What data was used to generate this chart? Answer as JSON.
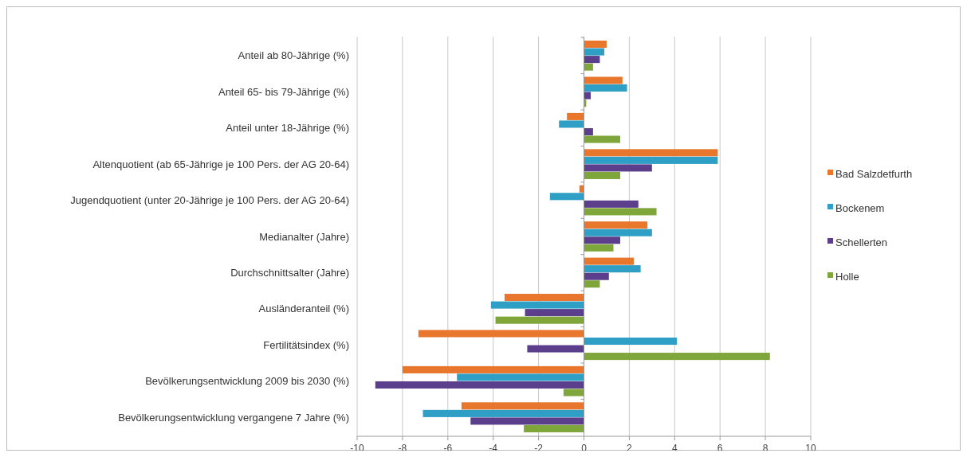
{
  "chart_data": {
    "type": "bar",
    "orientation": "horizontal",
    "categories": [
      "Anteil ab 80-Jährige (%)",
      "Anteil 65- bis 79-Jährige (%)",
      "Anteil unter 18-Jährige (%)",
      "Altenquotient (ab 65-Jährige je 100 Pers. der AG 20-64)",
      "Jugendquotient (unter 20-Jährige je 100 Pers. der AG 20-64)",
      "Medianalter (Jahre)",
      "Durchschnittsalter (Jahre)",
      "Ausländeranteil (%)",
      "Fertilitätsindex (%)",
      "Bevölkerungsentwicklung 2009 bis 2030 (%)",
      "Bevölkerungsentwicklung vergangene 7 Jahre (%)"
    ],
    "series": [
      {
        "name": "Bad Salzdetfurth",
        "color": "#e8762d",
        "values": [
          1.0,
          1.7,
          -0.75,
          5.9,
          -0.2,
          2.8,
          2.2,
          -3.5,
          -7.3,
          -8.0,
          -5.4
        ]
      },
      {
        "name": "Bockenem",
        "color": "#2f9fc5",
        "values": [
          0.9,
          1.9,
          -1.1,
          5.9,
          -1.5,
          3.0,
          2.5,
          -4.1,
          4.1,
          -5.6,
          -7.1
        ]
      },
      {
        "name": "Schellerten",
        "color": "#5b3f8c",
        "values": [
          0.7,
          0.3,
          0.4,
          3.0,
          2.4,
          1.6,
          1.1,
          -2.6,
          -2.5,
          -9.2,
          -5.0
        ]
      },
      {
        "name": "Holle",
        "color": "#7fa63a",
        "values": [
          0.4,
          0.1,
          1.6,
          1.6,
          3.2,
          1.3,
          0.7,
          -3.9,
          8.2,
          -0.9,
          -2.65
        ]
      }
    ],
    "xlim": [
      -10,
      10
    ],
    "xticks": [
      -10,
      -8,
      -6,
      -4,
      -2,
      0,
      2,
      4,
      6,
      8,
      10
    ],
    "grid": "x",
    "legend": "right"
  }
}
